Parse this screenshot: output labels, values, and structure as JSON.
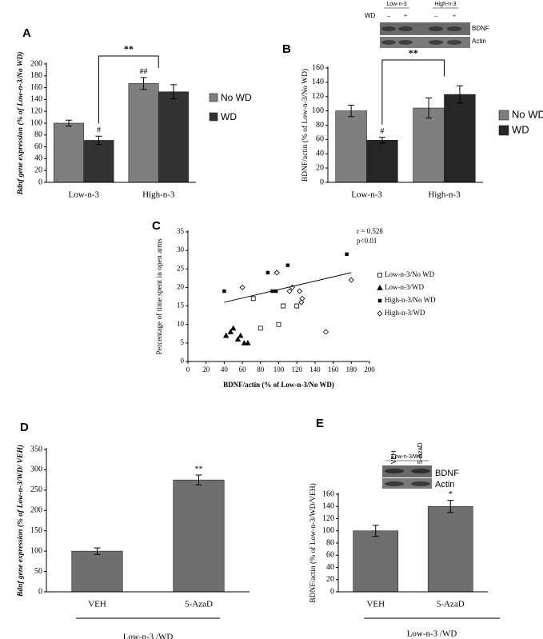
{
  "chart_data": [
    {
      "type": "bar",
      "panel": "A",
      "categories": [
        "Low-n-3",
        "High-n-3"
      ],
      "series": [
        {
          "name": "No WD",
          "color": "#7f7f7f",
          "values": [
            100,
            167
          ],
          "errors": [
            5,
            10
          ]
        },
        {
          "name": "WD",
          "color": "#333333",
          "values": [
            71,
            153
          ],
          "errors": [
            7,
            12
          ]
        }
      ],
      "ylim": [
        0,
        200
      ],
      "yticks": [
        0,
        20,
        40,
        60,
        80,
        100,
        120,
        140,
        160,
        180,
        200
      ],
      "ylabel": "Bdnf gene expression (% of Low-n-3/No WD)",
      "annotations": [
        {
          "text": "#",
          "series": 1,
          "category": 0
        },
        {
          "text": "##",
          "series": 0,
          "category": 1
        }
      ],
      "bracket_label": "**"
    },
    {
      "type": "bar",
      "panel": "B",
      "categories": [
        "Low-n-3",
        "High-n-3"
      ],
      "series": [
        {
          "name": "No WD",
          "color": "#7f7f7f",
          "values": [
            100,
            104
          ],
          "errors": [
            8,
            14
          ]
        },
        {
          "name": "WD",
          "color": "#262626",
          "values": [
            59,
            123
          ],
          "errors": [
            4,
            12
          ]
        }
      ],
      "ylim": [
        0,
        160
      ],
      "yticks": [
        0,
        20,
        40,
        60,
        80,
        100,
        120,
        140,
        160
      ],
      "ylabel": "BDNF/actin (% of Low-n-3/No WD)",
      "annotations": [
        {
          "text": "#",
          "series": 1,
          "category": 0
        }
      ],
      "bracket_label": "**",
      "blot": {
        "groups": [
          "Low-n-3",
          "High-n-3"
        ],
        "row_label": "WD",
        "signs": [
          "–",
          "+",
          "–",
          "+"
        ],
        "bands": [
          "BDNF",
          "Actin"
        ]
      }
    },
    {
      "type": "scatter",
      "panel": "C",
      "xlabel": "BDNF/actin (% of Low-n-3/No WD)",
      "ylabel": "Percentage of time spent in open arms",
      "xlim": [
        0,
        200
      ],
      "xticks": [
        0,
        20,
        40,
        60,
        80,
        100,
        120,
        140,
        160,
        180,
        200
      ],
      "ylim": [
        0,
        35
      ],
      "yticks": [
        0,
        5,
        10,
        15,
        20,
        25,
        30,
        35
      ],
      "annotations": [
        "r = 0.528",
        "p<0.01"
      ],
      "series": [
        {
          "name": "Low-n-3/No WD",
          "marker": "square-open",
          "color": "#000000",
          "x": [
            72,
            80,
            100,
            105,
            120
          ],
          "y": [
            17,
            9,
            10,
            15,
            15
          ]
        },
        {
          "name": "Low-n-3/WD",
          "marker": "triangle",
          "color": "#000000",
          "x": [
            42,
            47,
            50,
            55,
            58,
            62,
            66
          ],
          "y": [
            7,
            8,
            9,
            6,
            7,
            5,
            5
          ]
        },
        {
          "name": "High-n-3/No WD",
          "marker": "square",
          "color": "#000000",
          "x": [
            40,
            88,
            93,
            97,
            110,
            175
          ],
          "y": [
            19,
            24,
            19,
            19,
            26,
            29
          ]
        },
        {
          "name": "High-n-3/WD",
          "marker": "diamond-open",
          "color": "#000000",
          "x": [
            60,
            98,
            112,
            115,
            123,
            125,
            126,
            152,
            180
          ],
          "y": [
            20,
            24,
            19,
            20,
            19,
            16,
            17,
            8,
            22
          ]
        }
      ],
      "trendline": {
        "x": [
          40,
          180
        ],
        "y": [
          16,
          24
        ]
      }
    },
    {
      "type": "bar",
      "panel": "D",
      "categories": [
        "VEH",
        "5-AzaD"
      ],
      "values": [
        100,
        275
      ],
      "errors": [
        8,
        12
      ],
      "color": "#6f6f6f",
      "ylim": [
        0,
        350
      ],
      "yticks": [
        0,
        50,
        100,
        150,
        200,
        250,
        300,
        350
      ],
      "ylabel": "Bdnf gene expression (% of Low-n-3/WD/ VEH)",
      "annotations": [
        {
          "text": "**",
          "category": 1
        }
      ],
      "group_label": "Low-n-3 /WD"
    },
    {
      "type": "bar",
      "panel": "E",
      "categories": [
        "VEH",
        "5-AzaD"
      ],
      "values": [
        100,
        140
      ],
      "errors": [
        9,
        10
      ],
      "color": "#6f6f6f",
      "ylim": [
        0,
        160
      ],
      "yticks": [
        0,
        20,
        40,
        60,
        80,
        100,
        120,
        140,
        160
      ],
      "ylabel": "BDNF/actin (% of Low-n-3/WD/VEH)",
      "annotations": [
        {
          "text": "*",
          "category": 1
        }
      ],
      "group_label": "Low-n-3 /WD",
      "blot": {
        "title": "Low-n-3/WD",
        "lanes": [
          "VEH",
          "5-AzaD"
        ],
        "bands": [
          "BDNF",
          "Actin"
        ]
      }
    }
  ]
}
